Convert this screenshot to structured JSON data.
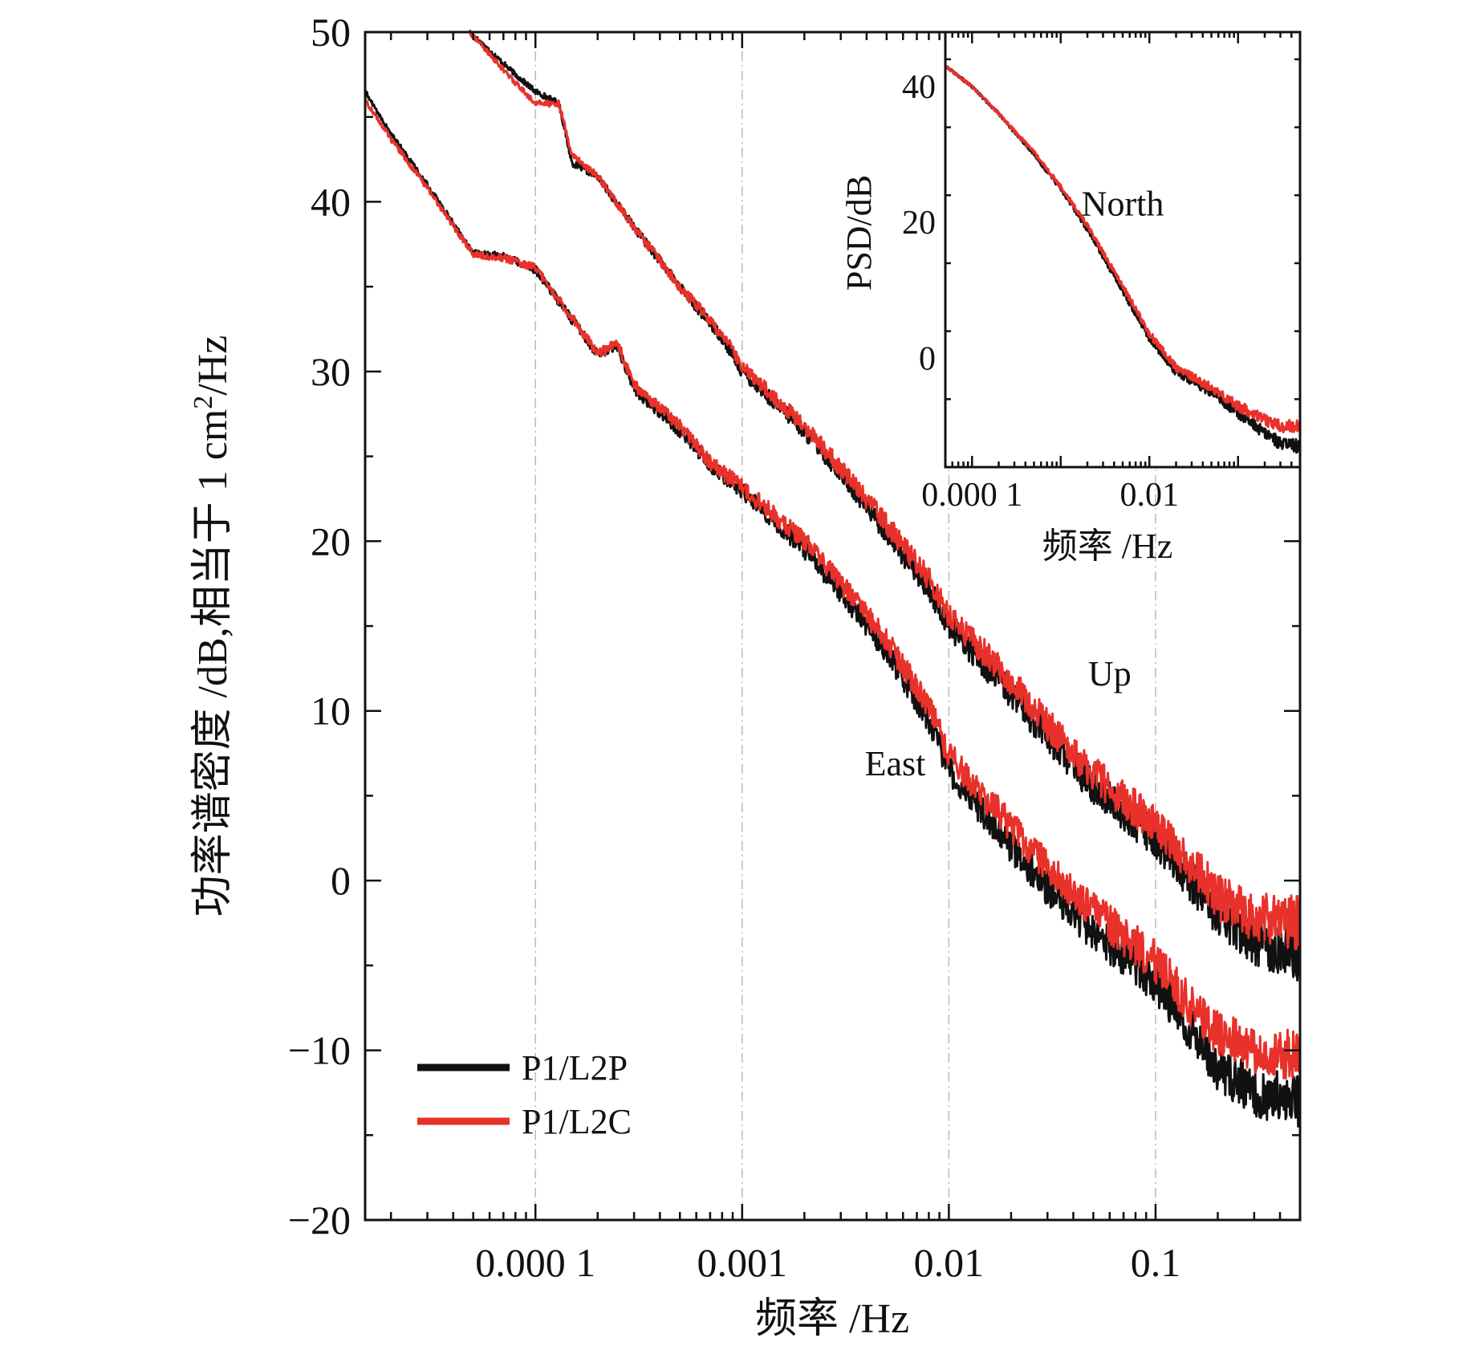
{
  "chart_data": [
    {
      "type": "line",
      "subplot": "main",
      "xscale": "log",
      "xlim": [
        1.5e-05,
        0.5
      ],
      "ylim": [
        -20,
        50
      ],
      "yticks": [
        50,
        40,
        30,
        20,
        10,
        0,
        -10,
        -20
      ],
      "ytick_labels": [
        "50",
        "40",
        "30",
        "20",
        "10",
        "0",
        "−10",
        "−20"
      ],
      "xticks": [
        0.0001,
        0.001,
        0.01,
        0.1
      ],
      "xtick_labels": [
        "0.000 1",
        "0.001",
        "0.01",
        "0.1"
      ],
      "xlabel": "频率 /Hz",
      "ylabel_main": "功率谱密度 /dB,相当于 1 cm",
      "ylabel_sup": "2",
      "ylabel_tail": "/Hz",
      "grid": "vertical dash-dot at decades",
      "legend": {
        "placement": "lower-left",
        "entries": [
          {
            "label": "P1/L2P",
            "color": "#111111"
          },
          {
            "label": "P1/L2C",
            "color": "#e8312a"
          }
        ]
      },
      "annotations": [
        {
          "text": "Up",
          "x": 0.06,
          "y": 11.5
        },
        {
          "text": "East",
          "x": 0.0055,
          "y": 6.2
        }
      ],
      "series": [
        {
          "name": "Up",
          "variant": "P1/L2P",
          "color": "#111111",
          "x": [
            4.8e-05,
            8e-05,
            0.0001,
            0.00013,
            0.00015,
            0.0002,
            0.0003,
            0.0005,
            0.0008,
            0.001,
            0.002,
            0.003,
            0.005,
            0.008,
            0.01,
            0.02,
            0.03,
            0.05,
            0.08,
            0.1,
            0.15,
            0.2,
            0.3,
            0.5
          ],
          "y": [
            50,
            47.5,
            46.5,
            45.8,
            42.3,
            41.5,
            38.5,
            35,
            32,
            30,
            26.5,
            24,
            20.5,
            17.2,
            15,
            11,
            8.5,
            5.5,
            3.5,
            2.5,
            0,
            -2,
            -3.5,
            -4.5
          ]
        },
        {
          "name": "Up",
          "variant": "P1/L2C",
          "color": "#e8312a",
          "x": [
            4.8e-05,
            8e-05,
            0.0001,
            0.00013,
            0.00015,
            0.0002,
            0.0003,
            0.0005,
            0.0008,
            0.001,
            0.002,
            0.003,
            0.005,
            0.008,
            0.01,
            0.02,
            0.03,
            0.05,
            0.08,
            0.1,
            0.15,
            0.2,
            0.3,
            0.5
          ],
          "y": [
            50,
            47,
            45.8,
            45.8,
            42.8,
            41.5,
            38.5,
            35,
            32.2,
            30.3,
            26.8,
            24.3,
            21,
            17.8,
            15.6,
            11.8,
            9.2,
            6.3,
            4.2,
            3.2,
            1,
            -1,
            -2.2,
            -2.5
          ]
        },
        {
          "name": "East",
          "variant": "P1/L2P",
          "color": "#111111",
          "x": [
            1.5e-05,
            2e-05,
            3e-05,
            5e-05,
            7e-05,
            0.0001,
            0.0002,
            0.00025,
            0.0003,
            0.0005,
            0.0007,
            0.001,
            0.002,
            0.003,
            0.005,
            0.008,
            0.01,
            0.02,
            0.03,
            0.05,
            0.08,
            0.1,
            0.15,
            0.2,
            0.3,
            0.5
          ],
          "y": [
            46.5,
            44,
            41,
            37,
            36.8,
            36,
            31,
            31.5,
            29,
            26.5,
            24.5,
            23,
            19.5,
            17,
            13.5,
            9.5,
            6.5,
            2,
            -0.5,
            -3,
            -5,
            -6,
            -9,
            -11,
            -12.5,
            -13
          ]
        },
        {
          "name": "East",
          "variant": "P1/L2C",
          "color": "#e8312a",
          "x": [
            1.5e-05,
            2e-05,
            3e-05,
            5e-05,
            7e-05,
            0.0001,
            0.0002,
            0.00025,
            0.0003,
            0.0005,
            0.0007,
            0.001,
            0.002,
            0.003,
            0.005,
            0.008,
            0.01,
            0.02,
            0.03,
            0.05,
            0.08,
            0.1,
            0.15,
            0.2,
            0.3,
            0.5
          ],
          "y": [
            46,
            43.7,
            40.8,
            36.9,
            36.7,
            36.1,
            31.1,
            31.6,
            29.2,
            26.8,
            24.6,
            23.2,
            20,
            17.5,
            14.2,
            10.3,
            7.4,
            3.2,
            0.8,
            -1.8,
            -3.8,
            -4.8,
            -7.5,
            -9,
            -10,
            -10.3
          ]
        }
      ]
    },
    {
      "type": "line",
      "subplot": "inset",
      "xscale": "log",
      "xlim": [
        5e-05,
        0.5
      ],
      "ylim": [
        -16,
        48
      ],
      "yticks": [
        40,
        20,
        0
      ],
      "ytick_labels": [
        "40",
        "20",
        "0"
      ],
      "xticks": [
        0.0001,
        0.01
      ],
      "xtick_labels": [
        "0.000 1",
        "0.01"
      ],
      "xlabel": "频率 /Hz",
      "ylabel": "PSD/dB",
      "annotations": [
        {
          "text": "North",
          "x": 0.005,
          "y": 21
        }
      ],
      "series": [
        {
          "name": "North",
          "variant": "P1/L2P",
          "color": "#111111",
          "x": [
            5e-05,
            0.0001,
            0.0002,
            0.0005,
            0.001,
            0.002,
            0.005,
            0.01,
            0.02,
            0.05,
            0.1,
            0.2,
            0.3,
            0.5
          ],
          "y": [
            43,
            40,
            36,
            30,
            25,
            19,
            10,
            3,
            -2,
            -5,
            -8,
            -11,
            -12.5,
            -13
          ]
        },
        {
          "name": "North",
          "variant": "P1/L2C",
          "color": "#e8312a",
          "x": [
            5e-05,
            0.0001,
            0.0002,
            0.0005,
            0.001,
            0.002,
            0.005,
            0.01,
            0.02,
            0.05,
            0.1,
            0.2,
            0.3,
            0.5
          ],
          "y": [
            43,
            40,
            36,
            30.3,
            25.3,
            19.5,
            10.6,
            3.6,
            -1.3,
            -4.3,
            -7,
            -9,
            -10,
            -10
          ]
        }
      ]
    }
  ]
}
